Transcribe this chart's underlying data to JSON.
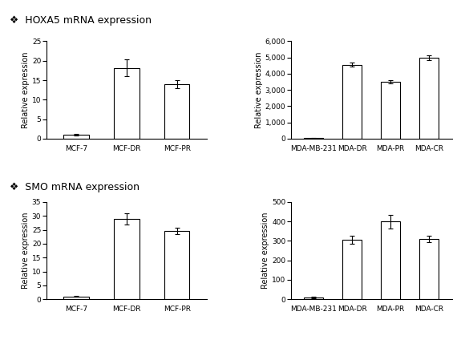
{
  "hoxa5_mcf": {
    "categories": [
      "MCF-7",
      "MCF-DR",
      "MCF-PR"
    ],
    "values": [
      1.0,
      18.2,
      14.0
    ],
    "errors": [
      0.15,
      2.2,
      1.0
    ],
    "ylim": [
      0,
      25
    ],
    "yticks": [
      0,
      5,
      10,
      15,
      20,
      25
    ],
    "ylabel": "Relative expression"
  },
  "hoxa5_mda": {
    "categories": [
      "MDA-MB-231",
      "MDA-DR",
      "MDA-PR",
      "MDA-CR"
    ],
    "values": [
      30,
      4550,
      3500,
      5000
    ],
    "errors": [
      20,
      130,
      120,
      150
    ],
    "ylim": [
      0,
      6000
    ],
    "yticks": [
      0,
      1000,
      2000,
      3000,
      4000,
      5000,
      6000
    ],
    "ylabel": "Relative expression"
  },
  "smo_mcf": {
    "categories": [
      "MCF-7",
      "MCF-DR",
      "MCF-PR"
    ],
    "values": [
      1.0,
      28.8,
      24.5
    ],
    "errors": [
      0.1,
      2.0,
      1.2
    ],
    "ylim": [
      0,
      35
    ],
    "yticks": [
      0,
      5,
      10,
      15,
      20,
      25,
      30,
      35
    ],
    "ylabel": "Relative expression"
  },
  "smo_mda": {
    "categories": [
      "MDA-MB-231",
      "MDA-DR",
      "MDA-PR",
      "MDA-CR"
    ],
    "values": [
      10,
      305,
      400,
      310
    ],
    "errors": [
      5,
      20,
      35,
      18
    ],
    "ylim": [
      0,
      500
    ],
    "yticks": [
      0,
      100,
      200,
      300,
      400,
      500
    ],
    "ylabel": "Relative expression"
  },
  "title_hoxa5": "HOXA5 mRNA expression",
  "title_smo": "SMO mRNA expression",
  "bar_color": "#ffffff",
  "bar_edgecolor": "#000000",
  "title_marker": "❖"
}
